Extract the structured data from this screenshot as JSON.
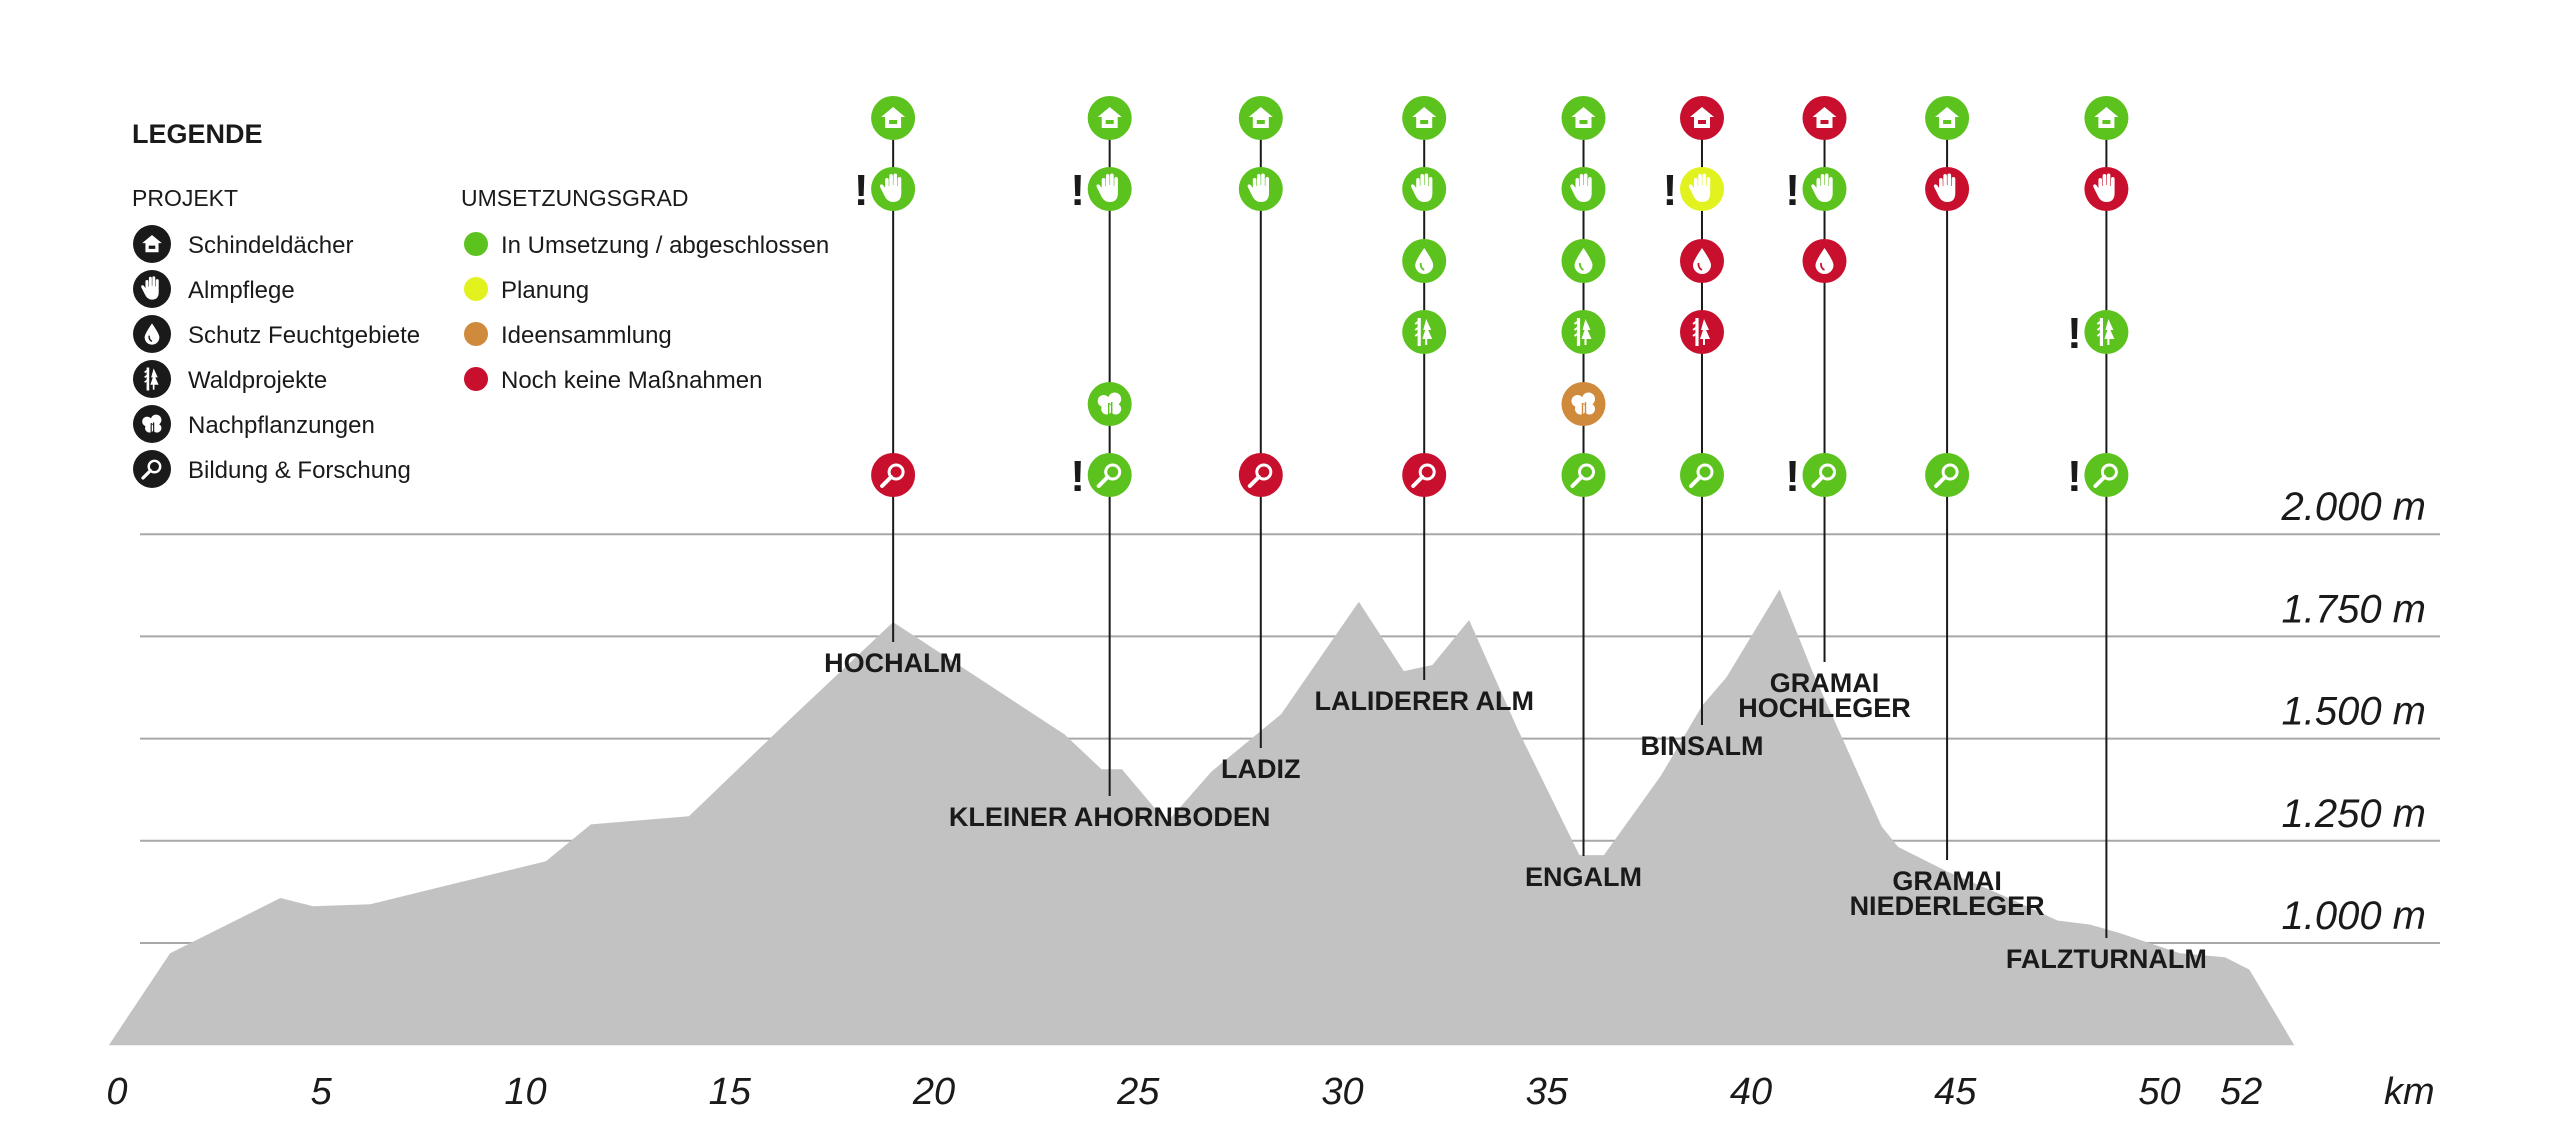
{
  "legend": {
    "title": "LEGENDE",
    "projekt_header": "PROJEKT",
    "umsetzung_header": "UMSETZUNGSGRAD",
    "projects": [
      {
        "key": "house",
        "label": "Schindeldächer"
      },
      {
        "key": "hand",
        "label": "Almpflege"
      },
      {
        "key": "drop",
        "label": "Schutz Feuchtgebiete"
      },
      {
        "key": "forest",
        "label": "Waldprojekte"
      },
      {
        "key": "tree",
        "label": "Nachpflanzungen"
      },
      {
        "key": "search",
        "label": "Bildung & Forschung"
      }
    ],
    "statuses": [
      {
        "key": "green",
        "label": "In Umsetzung / abgeschlossen",
        "color": "#5cc21d"
      },
      {
        "key": "yellow",
        "label": "Planung",
        "color": "#e2f21e"
      },
      {
        "key": "orange",
        "label": "Ideensammlung",
        "color": "#d08a3c"
      },
      {
        "key": "red",
        "label": "Noch keine Maßnahmen",
        "color": "#c8102e"
      }
    ]
  },
  "colors": {
    "terrain": "#c2c2c2",
    "grid": "#a8a8a8",
    "leader": "#1a1a1a",
    "text": "#1a1a1a",
    "legend_icon": "#1a1a1a"
  },
  "chart_data": {
    "type": "area",
    "title": "",
    "xlabel": "km",
    "ylabel": "",
    "xlim": [
      0,
      52
    ],
    "ylim": [
      750,
      2000
    ],
    "x_ticks": [
      {
        "value": 0,
        "label": "0"
      },
      {
        "value": 5,
        "label": "5"
      },
      {
        "value": 10,
        "label": "10"
      },
      {
        "value": 15,
        "label": "15"
      },
      {
        "value": 20,
        "label": "20"
      },
      {
        "value": 25,
        "label": "25"
      },
      {
        "value": 30,
        "label": "30"
      },
      {
        "value": 35,
        "label": "35"
      },
      {
        "value": 40,
        "label": "40"
      },
      {
        "value": 45,
        "label": "45"
      },
      {
        "value": 50,
        "label": "50"
      },
      {
        "value": 52,
        "label": "52"
      }
    ],
    "y_ticks": [
      {
        "value": 1000,
        "label": "1.000 m"
      },
      {
        "value": 1250,
        "label": "1.250 m"
      },
      {
        "value": 1500,
        "label": "1.500 m"
      },
      {
        "value": 1750,
        "label": "1.750 m"
      },
      {
        "value": 2000,
        "label": "2.000 m"
      }
    ],
    "profile": {
      "x": [
        -0.2,
        1.3,
        4.0,
        4.8,
        6.2,
        10.5,
        11.6,
        14.0,
        16.5,
        19.0,
        23.2,
        24.1,
        24.6,
        25.7,
        26.8,
        28.5,
        30.4,
        31.5,
        32.2,
        33.1,
        34.3,
        35.8,
        36.4,
        37.8,
        38.8,
        39.4,
        40.7,
        41.5,
        43.2,
        43.6,
        44.8,
        46.2,
        47.5,
        48.3,
        49.0,
        50.5,
        51.6,
        52.2,
        53.3
      ],
      "y": [
        750,
        975,
        1110,
        1090,
        1095,
        1200,
        1290,
        1310,
        1550,
        1785,
        1510,
        1425,
        1425,
        1295,
        1420,
        1560,
        1835,
        1665,
        1680,
        1790,
        1520,
        1215,
        1215,
        1410,
        1580,
        1650,
        1865,
        1665,
        1285,
        1235,
        1175,
        1115,
        1055,
        1045,
        1025,
        975,
        965,
        935,
        750
      ]
    },
    "huts": [
      {
        "name": "HOCHALM",
        "km": 19.0,
        "label_lines": [
          "HOCHALM"
        ],
        "projects": {
          "house": "green",
          "hand": "green",
          "search": "red"
        },
        "flags": [
          "hand"
        ]
      },
      {
        "name": "KLEINER AHORNBODEN",
        "km": 24.3,
        "label_lines": [
          "KLEINER AHORNBODEN"
        ],
        "projects": {
          "house": "green",
          "hand": "green",
          "tree": "green",
          "search": "green"
        },
        "flags": [
          "hand",
          "search"
        ]
      },
      {
        "name": "LADIZ",
        "km": 28.0,
        "label_lines": [
          "LADIZ"
        ],
        "projects": {
          "house": "green",
          "hand": "green",
          "search": "red"
        },
        "flags": []
      },
      {
        "name": "LALIDERER ALM",
        "km": 32.0,
        "label_lines": [
          "LALIDERER ALM"
        ],
        "projects": {
          "house": "green",
          "hand": "green",
          "drop": "green",
          "forest": "green",
          "search": "red"
        },
        "flags": []
      },
      {
        "name": "ENGALM",
        "km": 35.9,
        "label_lines": [
          "ENGALM"
        ],
        "projects": {
          "house": "green",
          "hand": "green",
          "drop": "green",
          "forest": "green",
          "tree": "orange",
          "search": "green"
        },
        "flags": []
      },
      {
        "name": "BINSALM",
        "km": 38.8,
        "label_lines": [
          "BINSALM"
        ],
        "projects": {
          "house": "red",
          "hand": "yellow",
          "drop": "red",
          "forest": "red",
          "search": "green"
        },
        "flags": [
          "hand"
        ]
      },
      {
        "name": "GRAMAI HOCHLEGER",
        "km": 41.8,
        "label_lines": [
          "GRAMAI",
          "HOCHLEGER"
        ],
        "projects": {
          "house": "red",
          "hand": "green",
          "drop": "red",
          "search": "green"
        },
        "flags": [
          "hand",
          "search"
        ]
      },
      {
        "name": "GRAMAI NIEDERLEGER",
        "km": 44.8,
        "label_lines": [
          "GRAMAI",
          "NIEDERLEGER"
        ],
        "projects": {
          "house": "green",
          "hand": "red",
          "search": "green"
        },
        "flags": []
      },
      {
        "name": "FALZTURNALM",
        "km": 48.7,
        "label_lines": [
          "FALZTURNALM"
        ],
        "projects": {
          "house": "green",
          "hand": "red",
          "forest": "green",
          "search": "green"
        },
        "flags": [
          "forest",
          "search"
        ]
      }
    ],
    "flag_symbol": "!"
  }
}
